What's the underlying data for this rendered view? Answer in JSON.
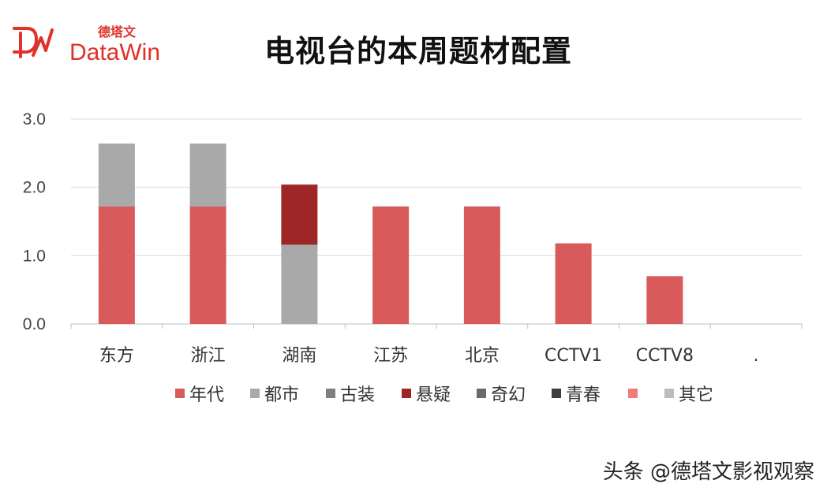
{
  "header": {
    "logo_text_cn": "德塔文",
    "logo_text_en": "DataWin",
    "title": "电视台的本周题材配置"
  },
  "watermark": "头条 @德塔文影视观察",
  "colors": {
    "年代": "#d85a5a",
    "都市": "#a9a9a9",
    "古装": "#7f7f7f",
    "悬疑": "#9e2626",
    "奇幻": "#6a6a6a",
    "青春": "#3d3d3d",
    "blank": "#ef7b7b",
    "其它": "#bdbdbd",
    "logo": "#e0312b",
    "grid": "#d9d9d9"
  },
  "chart_data": {
    "type": "bar",
    "stacked": true,
    "categories": [
      "东方",
      "浙江",
      "湖南",
      "江苏",
      "北京",
      "CCTV1",
      "CCTV8",
      "."
    ],
    "series": [
      {
        "name": "年代",
        "values": [
          1.72,
          1.72,
          0,
          1.72,
          1.72,
          1.18,
          0.7,
          0
        ]
      },
      {
        "name": "都市",
        "values": [
          0.92,
          0.92,
          1.16,
          0,
          0,
          0,
          0,
          0
        ]
      },
      {
        "name": "古装",
        "values": [
          0,
          0,
          0,
          0,
          0,
          0,
          0,
          0
        ]
      },
      {
        "name": "悬疑",
        "values": [
          0,
          0,
          0.88,
          0,
          0,
          0,
          0,
          0
        ]
      },
      {
        "name": "奇幻",
        "values": [
          0,
          0,
          0,
          0,
          0,
          0,
          0,
          0
        ]
      },
      {
        "name": "青春",
        "values": [
          0,
          0,
          0,
          0,
          0,
          0,
          0,
          0
        ]
      },
      {
        "name": "",
        "values": [
          0,
          0,
          0,
          0,
          0,
          0,
          0,
          0
        ]
      },
      {
        "name": "其它",
        "values": [
          0,
          0,
          0,
          0,
          0,
          0,
          0,
          0
        ]
      }
    ],
    "yticks": [
      "0.0",
      "1.0",
      "2.0",
      "3.0"
    ],
    "ylim": [
      0,
      3
    ],
    "grid": true,
    "legend_position": "bottom"
  }
}
